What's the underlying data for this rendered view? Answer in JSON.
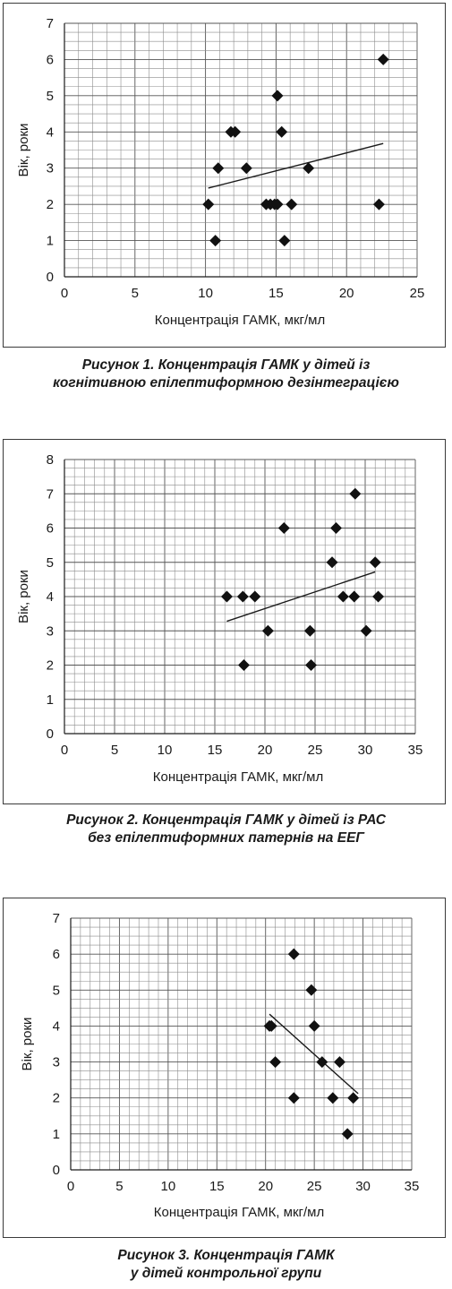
{
  "chart_data": [
    {
      "type": "scatter",
      "xlabel": "Концентрація ГАМК, мкг/мл",
      "ylabel": "Вік, роки",
      "xlim": [
        0,
        25
      ],
      "ylim": [
        0,
        7
      ],
      "xticks": [
        "0",
        "5",
        "10",
        "15",
        "20",
        "25"
      ],
      "yticks": [
        "0",
        "1",
        "2",
        "3",
        "4",
        "5",
        "6",
        "7"
      ],
      "grid": true,
      "marker": "diamond",
      "points": [
        {
          "x": 10.2,
          "y": 2
        },
        {
          "x": 10.7,
          "y": 1
        },
        {
          "x": 10.9,
          "y": 3
        },
        {
          "x": 11.8,
          "y": 4
        },
        {
          "x": 12.1,
          "y": 4
        },
        {
          "x": 12.9,
          "y": 3
        },
        {
          "x": 14.3,
          "y": 2
        },
        {
          "x": 14.6,
          "y": 2
        },
        {
          "x": 14.9,
          "y": 2
        },
        {
          "x": 15.1,
          "y": 2
        },
        {
          "x": 15.1,
          "y": 5
        },
        {
          "x": 15.4,
          "y": 4
        },
        {
          "x": 15.6,
          "y": 1
        },
        {
          "x": 16.1,
          "y": 2
        },
        {
          "x": 17.3,
          "y": 3
        },
        {
          "x": 22.3,
          "y": 2
        },
        {
          "x": 22.6,
          "y": 6
        }
      ],
      "trendline": {
        "x": [
          10.2,
          22.6
        ],
        "y": [
          2.45,
          3.68
        ]
      },
      "caption": [
        "Рисунок 1. Концентрація ГАМК у дітей із",
        "когнітивною епілептиформною дезінтеграцією"
      ]
    },
    {
      "type": "scatter",
      "xlabel": "Концентрація ГАМК, мкг/мл",
      "ylabel": "Вік, роки",
      "xlim": [
        0,
        35
      ],
      "ylim": [
        0,
        8
      ],
      "xticks": [
        "0",
        "5",
        "10",
        "15",
        "20",
        "25",
        "30",
        "35"
      ],
      "yticks": [
        "0",
        "1",
        "2",
        "3",
        "4",
        "5",
        "6",
        "7",
        "8"
      ],
      "grid": true,
      "marker": "diamond",
      "points": [
        {
          "x": 16.2,
          "y": 4
        },
        {
          "x": 17.8,
          "y": 4
        },
        {
          "x": 17.9,
          "y": 2
        },
        {
          "x": 19.0,
          "y": 4
        },
        {
          "x": 20.3,
          "y": 3
        },
        {
          "x": 21.9,
          "y": 6
        },
        {
          "x": 24.5,
          "y": 3
        },
        {
          "x": 24.6,
          "y": 2
        },
        {
          "x": 26.7,
          "y": 5
        },
        {
          "x": 27.1,
          "y": 6
        },
        {
          "x": 27.8,
          "y": 4
        },
        {
          "x": 28.9,
          "y": 4
        },
        {
          "x": 29.0,
          "y": 7
        },
        {
          "x": 30.1,
          "y": 3
        },
        {
          "x": 31.0,
          "y": 5
        },
        {
          "x": 31.3,
          "y": 4
        }
      ],
      "trendline": {
        "x": [
          16.2,
          31.0
        ],
        "y": [
          3.28,
          4.72
        ]
      },
      "caption": [
        "Рисунок 2. Концентрація ГАМК у дітей із РАС",
        "без епілептиформних патернів на ЕЕГ"
      ]
    },
    {
      "type": "scatter",
      "xlabel": "Концентрація ГАМК, мкг/мл",
      "ylabel": "Вік, роки",
      "xlim": [
        0,
        35
      ],
      "ylim": [
        0,
        7
      ],
      "xticks": [
        "0",
        "5",
        "10",
        "15",
        "20",
        "25",
        "30",
        "35"
      ],
      "yticks": [
        "0",
        "1",
        "2",
        "3",
        "4",
        "5",
        "6",
        "7"
      ],
      "grid": true,
      "marker": "diamond",
      "points": [
        {
          "x": 20.4,
          "y": 4
        },
        {
          "x": 20.6,
          "y": 4
        },
        {
          "x": 21.0,
          "y": 3
        },
        {
          "x": 22.9,
          "y": 2
        },
        {
          "x": 22.9,
          "y": 6
        },
        {
          "x": 24.7,
          "y": 5
        },
        {
          "x": 25.0,
          "y": 4
        },
        {
          "x": 25.8,
          "y": 3
        },
        {
          "x": 26.9,
          "y": 2
        },
        {
          "x": 27.6,
          "y": 3
        },
        {
          "x": 28.4,
          "y": 1
        },
        {
          "x": 29.0,
          "y": 2
        }
      ],
      "trendline": {
        "x": [
          20.4,
          29.5
        ],
        "y": [
          4.33,
          2.12
        ]
      },
      "caption": [
        "Рисунок 3. Концентрація ГАМК",
        "у дітей контрольної групи"
      ]
    }
  ]
}
